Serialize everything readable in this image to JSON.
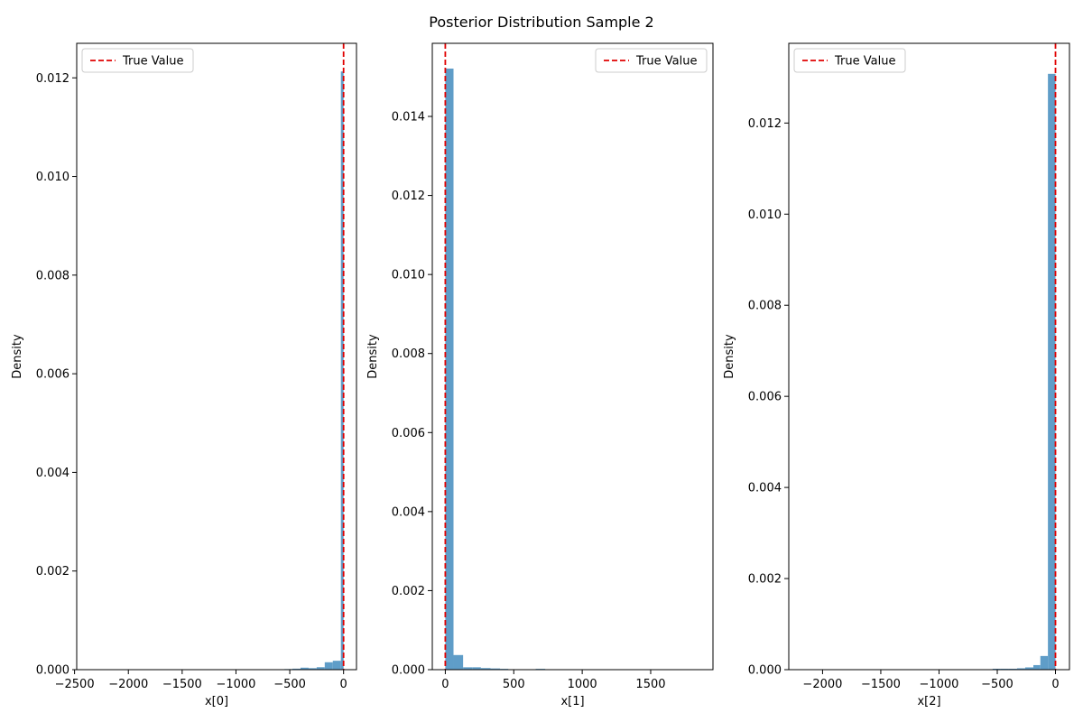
{
  "figure": {
    "title": "Posterior Distribution Sample 2"
  },
  "colors": {
    "bar": "#5f9dc8",
    "true_value_line": "#e00000",
    "axes": "#000000",
    "background": "#ffffff"
  },
  "chart_data": [
    {
      "type": "histogram",
      "xlabel": "x[0]",
      "ylabel": "Density",
      "xlim": [
        -2480,
        120
      ],
      "ylim": [
        0,
        0.0127
      ],
      "xticks": [
        -2500,
        -2000,
        -1500,
        -1000,
        -500,
        0
      ],
      "xtick_labels": [
        "−2500",
        "−2000",
        "−1500",
        "−1000",
        "−500",
        "0"
      ],
      "yticks": [
        0,
        0.002,
        0.004,
        0.006,
        0.008,
        0.01,
        0.012
      ],
      "ytick_labels": [
        "0.000",
        "0.002",
        "0.004",
        "0.006",
        "0.008",
        "0.010",
        "0.012"
      ],
      "bins": [
        {
          "x0": -1000,
          "x1": -925,
          "density": 1e-06
        },
        {
          "x0": -925,
          "x1": -850,
          "density": 3e-06
        },
        {
          "x0": -850,
          "x1": -775,
          "density": 5e-06
        },
        {
          "x0": -775,
          "x1": -700,
          "density": 6e-06
        },
        {
          "x0": -700,
          "x1": -625,
          "density": 7e-06
        },
        {
          "x0": -625,
          "x1": -550,
          "density": 8e-06
        },
        {
          "x0": -550,
          "x1": -475,
          "density": 1.2e-05
        },
        {
          "x0": -475,
          "x1": -400,
          "density": 2e-05
        },
        {
          "x0": -400,
          "x1": -325,
          "density": 4e-05
        },
        {
          "x0": -325,
          "x1": -250,
          "density": 3e-05
        },
        {
          "x0": -250,
          "x1": -175,
          "density": 5e-05
        },
        {
          "x0": -175,
          "x1": -100,
          "density": 0.00015
        },
        {
          "x0": -100,
          "x1": -25,
          "density": 0.00018
        },
        {
          "x0": -25,
          "x1": 0,
          "density": 0.01213
        }
      ],
      "true_value": 0,
      "legend": {
        "label": "True Value",
        "position": "upper-left"
      }
    },
    {
      "type": "histogram",
      "xlabel": "x[1]",
      "ylabel": "Density",
      "xlim": [
        -95,
        1955
      ],
      "ylim": [
        0,
        0.01585
      ],
      "xticks": [
        0,
        500,
        1000,
        1500
      ],
      "xtick_labels": [
        "0",
        "500",
        "1000",
        "1500"
      ],
      "yticks": [
        0,
        0.002,
        0.004,
        0.006,
        0.008,
        0.01,
        0.012,
        0.014
      ],
      "ytick_labels": [
        "0.000",
        "0.002",
        "0.004",
        "0.006",
        "0.008",
        "0.010",
        "0.012",
        "0.014"
      ],
      "bins": [
        {
          "x0": 0,
          "x1": 60,
          "density": 0.01521
        },
        {
          "x0": 60,
          "x1": 130,
          "density": 0.00037
        },
        {
          "x0": 130,
          "x1": 200,
          "density": 6e-05
        },
        {
          "x0": 200,
          "x1": 260,
          "density": 6e-05
        },
        {
          "x0": 260,
          "x1": 330,
          "density": 4e-05
        },
        {
          "x0": 330,
          "x1": 400,
          "density": 3e-05
        },
        {
          "x0": 400,
          "x1": 460,
          "density": 2e-05
        },
        {
          "x0": 460,
          "x1": 530,
          "density": 5e-06
        },
        {
          "x0": 530,
          "x1": 600,
          "density": 5e-06
        },
        {
          "x0": 600,
          "x1": 660,
          "density": 5e-06
        },
        {
          "x0": 660,
          "x1": 730,
          "density": 2e-05
        },
        {
          "x0": 730,
          "x1": 800,
          "density": 5e-06
        },
        {
          "x0": 800,
          "x1": 860,
          "density": 5e-06
        }
      ],
      "true_value": 0,
      "legend": {
        "label": "True Value",
        "position": "upper-right"
      }
    },
    {
      "type": "histogram",
      "xlabel": "x[2]",
      "ylabel": "Density",
      "xlim": [
        -2290,
        120
      ],
      "ylim": [
        0,
        0.01375
      ],
      "xticks": [
        -2000,
        -1500,
        -1000,
        -500,
        0
      ],
      "xtick_labels": [
        "−2000",
        "−1500",
        "−1000",
        "−500",
        "0"
      ],
      "yticks": [
        0,
        0.002,
        0.004,
        0.006,
        0.008,
        0.01,
        0.012
      ],
      "ytick_labels": [
        "0.000",
        "0.002",
        "0.004",
        "0.006",
        "0.008",
        "0.010",
        "0.012"
      ],
      "bins": [
        {
          "x0": -750,
          "x1": -680,
          "density": 1e-05
        },
        {
          "x0": -680,
          "x1": -610,
          "density": 5e-06
        },
        {
          "x0": -610,
          "x1": -540,
          "density": 5e-06
        },
        {
          "x0": -540,
          "x1": -470,
          "density": 2e-05
        },
        {
          "x0": -470,
          "x1": -400,
          "density": 2e-05
        },
        {
          "x0": -400,
          "x1": -330,
          "density": 2e-05
        },
        {
          "x0": -330,
          "x1": -260,
          "density": 3e-05
        },
        {
          "x0": -260,
          "x1": -190,
          "density": 5e-05
        },
        {
          "x0": -190,
          "x1": -130,
          "density": 0.0001
        },
        {
          "x0": -130,
          "x1": -65,
          "density": 0.0003
        },
        {
          "x0": -65,
          "x1": 0,
          "density": 0.01308
        }
      ],
      "true_value": 0,
      "legend": {
        "label": "True Value",
        "position": "upper-left"
      }
    }
  ]
}
